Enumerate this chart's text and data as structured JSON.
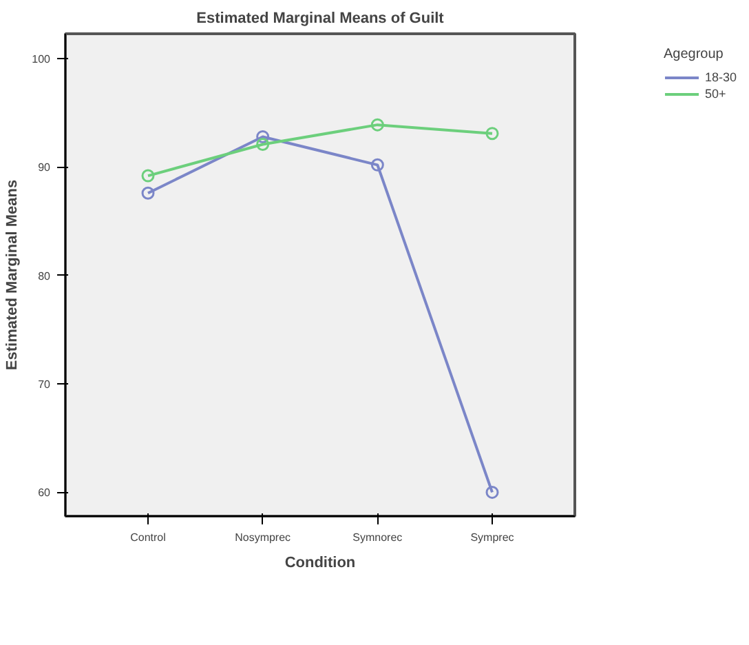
{
  "chart_data": {
    "type": "line",
    "title": "Estimated Marginal Means of Guilt",
    "xlabel": "Condition",
    "ylabel": "Estimated Marginal Means",
    "legend_title": "Agegroup",
    "categories": [
      "Control",
      "Nosymprec",
      "Symnorec",
      "Symprec"
    ],
    "series": [
      {
        "name": "18-30",
        "color": "#7b86c8",
        "values": [
          87.6,
          92.8,
          90.2,
          60.0
        ]
      },
      {
        "name": "50+",
        "color": "#6ccf7c",
        "values": [
          89.2,
          92.1,
          93.9,
          93.1
        ]
      }
    ],
    "ylim": [
      57.8,
      102.3
    ],
    "yticks": [
      60,
      70,
      80,
      90,
      100
    ],
    "grid": false,
    "legend": "top right",
    "marker": "circle",
    "line_style": "solid"
  }
}
